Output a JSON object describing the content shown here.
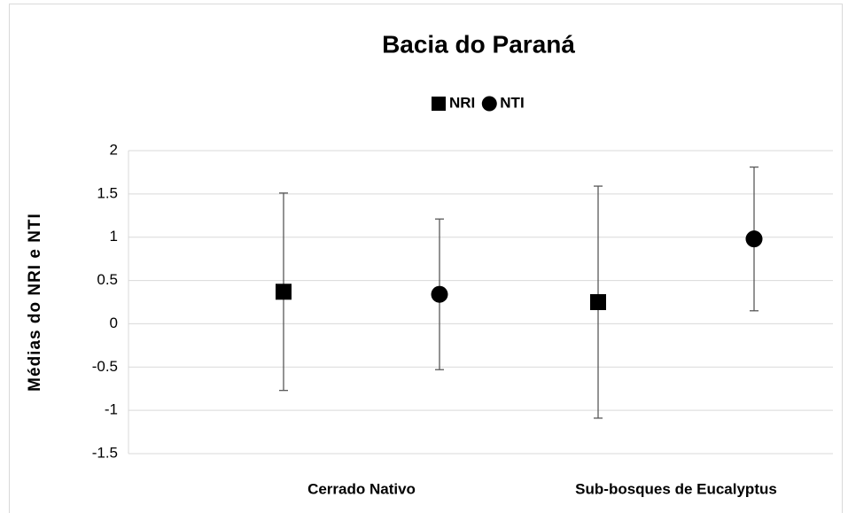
{
  "chart_data": {
    "type": "errorbar",
    "title": "Bacia do Paraná",
    "y_label": "Médias do NRI e NTI",
    "categories": [
      "Cerrado Nativo",
      "Sub-bosques de Eucalyptus"
    ],
    "series": [
      {
        "name": "NRI",
        "color": "#000000",
        "marker": "square",
        "values": [
          0.37,
          0.25
        ],
        "errors": [
          1.14,
          1.34
        ]
      },
      {
        "name": "NTI",
        "color": "#000000",
        "marker": "circle",
        "values": [
          0.34,
          0.98
        ],
        "errors": [
          0.87,
          0.83
        ]
      }
    ],
    "ylim": [
      -1.5,
      2
    ],
    "yticks": [
      -1.5,
      -1,
      -0.5,
      0,
      0.5,
      1,
      1.5,
      2
    ],
    "grid": true,
    "legend": "top"
  }
}
